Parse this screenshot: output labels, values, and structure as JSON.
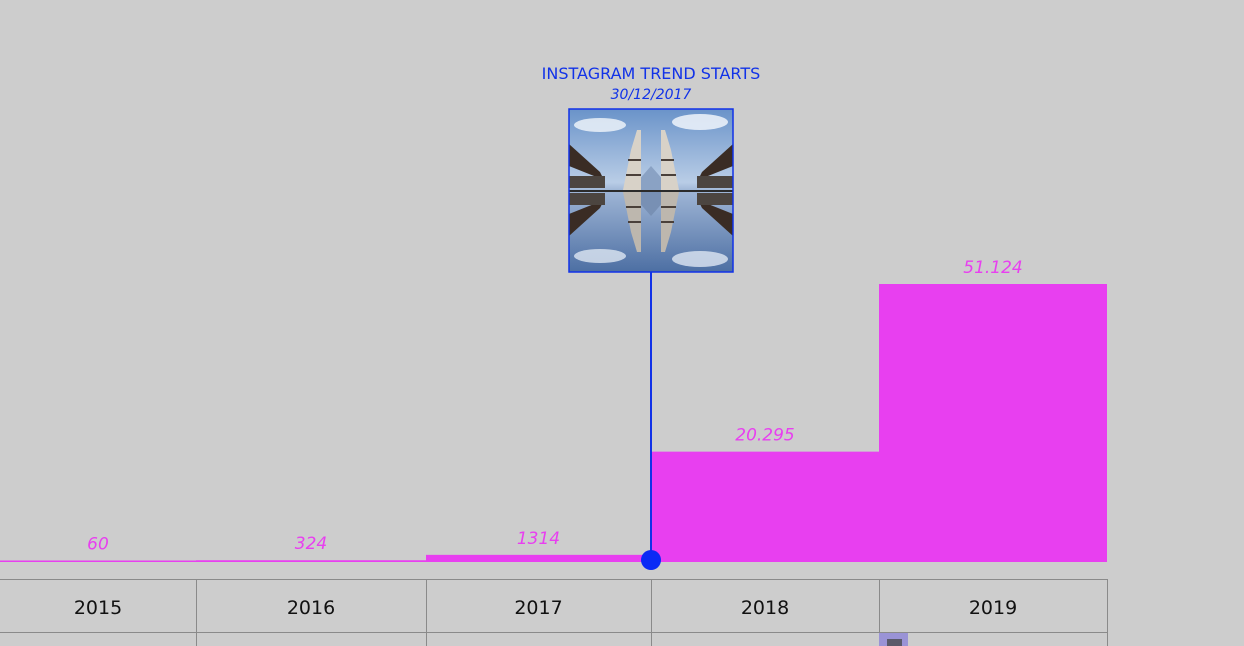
{
  "chart_data": {
    "type": "bar",
    "categories": [
      "2015",
      "2016",
      "2017",
      "2018",
      "2019"
    ],
    "values": [
      60,
      324,
      1314,
      20295,
      51124
    ],
    "value_labels": [
      "60",
      "324",
      "1314",
      "20.295",
      "51.124"
    ],
    "title": "",
    "xlabel": "",
    "ylabel": "",
    "ylim": [
      0,
      56000
    ],
    "grid": false,
    "legend": "none",
    "annotation": {
      "title": "INSTAGRAM TREND STARTS",
      "date": "30/12/2017",
      "x_value": "2017-12-30"
    }
  },
  "colors": {
    "background": "#cdcdcd",
    "bar": "#e83ff0",
    "annotation": "#1132e8",
    "grid_line": "#8a8a8a",
    "text": "#111111"
  },
  "icons": {
    "annotation_image": "temple-gate-reflection-photo"
  }
}
